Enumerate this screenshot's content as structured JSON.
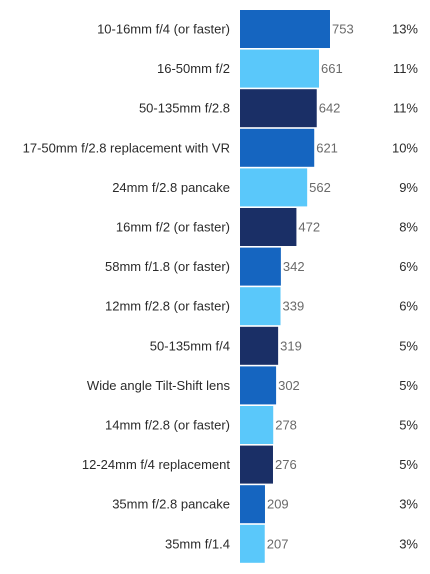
{
  "chart_data": {
    "type": "bar",
    "orientation": "horizontal",
    "categories": [
      "10-16mm f/4 (or faster)",
      "16-50mm f/2",
      "50-135mm f/2.8",
      "17-50mm f/2.8 replacement with VR",
      "24mm f/2.8 pancake",
      "16mm f/2 (or faster)",
      "58mm f/1.8 (or faster)",
      "12mm f/2.8 (or faster)",
      "50-135mm f/4",
      "Wide angle Tilt-Shift lens",
      "14mm f/2.8 (or faster)",
      "12-24mm f/4 replacement",
      "35mm f/2.8 pancake",
      "35mm f/1.4"
    ],
    "values": [
      753,
      661,
      642,
      621,
      562,
      472,
      342,
      339,
      319,
      302,
      278,
      276,
      209,
      207
    ],
    "percentages": [
      "13%",
      "11%",
      "11%",
      "10%",
      "9%",
      "8%",
      "6%",
      "6%",
      "5%",
      "5%",
      "5%",
      "5%",
      "3%",
      "3%"
    ],
    "bar_colors": [
      "#1565c0",
      "#5ac8fa",
      "#1a2f66",
      "#1565c0",
      "#5ac8fa",
      "#1a2f66",
      "#1565c0",
      "#5ac8fa",
      "#1a2f66",
      "#1565c0",
      "#5ac8fa",
      "#1a2f66",
      "#1565c0",
      "#5ac8fa"
    ],
    "xlim": [
      0,
      753
    ],
    "title": "",
    "xlabel": "",
    "ylabel": "",
    "grid": false,
    "legend": "none"
  }
}
